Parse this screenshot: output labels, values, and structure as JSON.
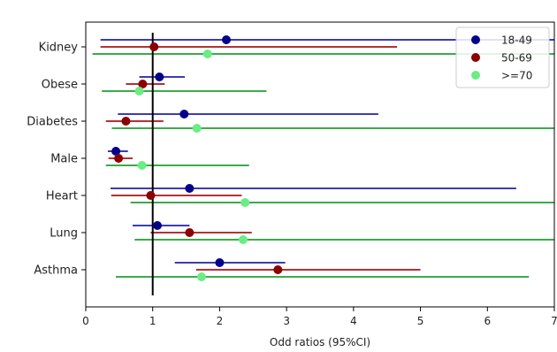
{
  "chart_data": {
    "type": "scatter",
    "subtype": "forest-plot",
    "title": "",
    "xlabel": "Odd ratios (95%CI)",
    "ylabel": "",
    "xlim": [
      0,
      7
    ],
    "xticks": [
      0,
      1,
      2,
      3,
      4,
      5,
      6,
      7
    ],
    "categories": [
      "Kidney",
      "Obese",
      "Diabetes",
      "Male",
      "Heart",
      "Lung",
      "Asthma"
    ],
    "reference_line": 1,
    "grid": false,
    "legend": {
      "position": "top-right"
    },
    "series": [
      {
        "name": "18-49",
        "color": "#00008b",
        "line_color": "#3c3cb4",
        "points": [
          {
            "or": 2.1,
            "low": 0.22,
            "high": 7.0
          },
          {
            "or": 1.1,
            "low": 0.8,
            "high": 1.48
          },
          {
            "or": 1.47,
            "low": 0.48,
            "high": 4.37
          },
          {
            "or": 0.45,
            "low": 0.33,
            "high": 0.63
          },
          {
            "or": 1.55,
            "low": 0.37,
            "high": 6.43
          },
          {
            "or": 1.07,
            "low": 0.7,
            "high": 1.55
          },
          {
            "or": 2.0,
            "low": 1.33,
            "high": 2.98
          }
        ]
      },
      {
        "name": "50-69",
        "color": "#8b0000",
        "line_color": "#b43232",
        "points": [
          {
            "or": 1.02,
            "low": 0.22,
            "high": 4.65
          },
          {
            "or": 0.85,
            "low": 0.6,
            "high": 1.18
          },
          {
            "or": 0.6,
            "low": 0.3,
            "high": 1.16
          },
          {
            "or": 0.49,
            "low": 0.34,
            "high": 0.7
          },
          {
            "or": 0.97,
            "low": 0.38,
            "high": 2.33
          },
          {
            "or": 1.55,
            "low": 0.97,
            "high": 2.48
          },
          {
            "or": 2.87,
            "low": 1.65,
            "high": 5.0
          }
        ]
      },
      {
        "name": ">=70",
        "color": "#6cec84",
        "line_color": "#3cab4a",
        "points": [
          {
            "or": 1.82,
            "low": 0.1,
            "high": 7.0
          },
          {
            "or": 0.8,
            "low": 0.24,
            "high": 2.7
          },
          {
            "or": 1.66,
            "low": 0.39,
            "high": 7.0
          },
          {
            "or": 0.84,
            "low": 0.3,
            "high": 2.44
          },
          {
            "or": 2.38,
            "low": 0.67,
            "high": 7.0
          },
          {
            "or": 2.35,
            "low": 0.73,
            "high": 7.0
          },
          {
            "or": 1.73,
            "low": 0.45,
            "high": 6.62
          }
        ]
      }
    ]
  }
}
